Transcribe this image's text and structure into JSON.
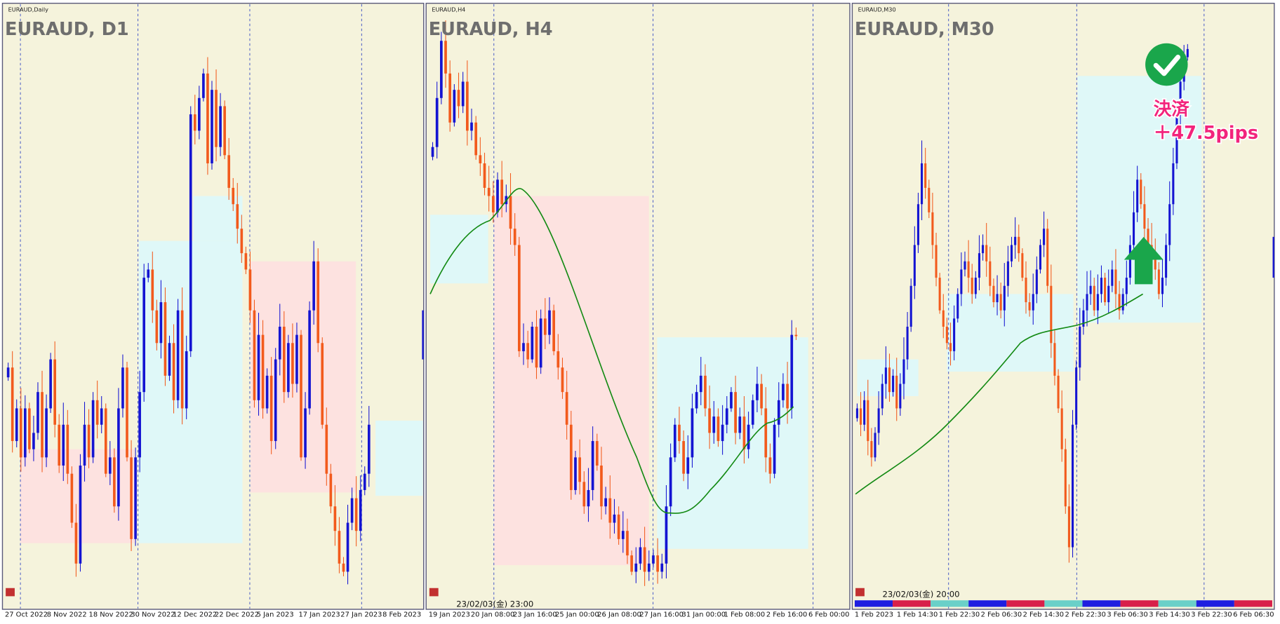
{
  "panels": [
    {
      "symbol_label": "EURAUD,Daily",
      "title": "EURAUD, D1",
      "x_labels": [
        "27 Oct 2022",
        "8 Nov 2022",
        "18 Nov 2022",
        "30 Nov 2022",
        "12 Dec 2022",
        "22 Dec 2022",
        "5 Jan 2023",
        "17 Jan 2023",
        "27 Jan 2023",
        "8 Feb 2023"
      ]
    },
    {
      "symbol_label": "EURAUD,H4",
      "title": "EURAUD, H4",
      "cursor_time": "23/02/03(金) 23:00",
      "x_labels": [
        "19 Jan 2023",
        "20 Jan 08:00",
        "23 Jan 16:00",
        "25 Jan 00:00",
        "26 Jan 08:00",
        "27 Jan 16:00",
        "31 Jan 00:00",
        "1 Feb 08:00",
        "2 Feb 16:00",
        "6 Feb 00:00"
      ]
    },
    {
      "symbol_label": "EURAUD,M30",
      "title": "EURAUD, M30",
      "cursor_time": "23/02/03(金) 20:00",
      "x_labels": [
        "1 Feb 2023",
        "1 Feb 14:30",
        "1 Feb 22:30",
        "2 Feb 06:30",
        "2 Feb 14:30",
        "2 Feb 22:30",
        "3 Feb 06:30",
        "3 Feb 14:30",
        "3 Feb 22:30",
        "6 Feb 06:30"
      ]
    }
  ],
  "annotation": {
    "line1": "決済",
    "line2": "＋47.5pips"
  }
}
